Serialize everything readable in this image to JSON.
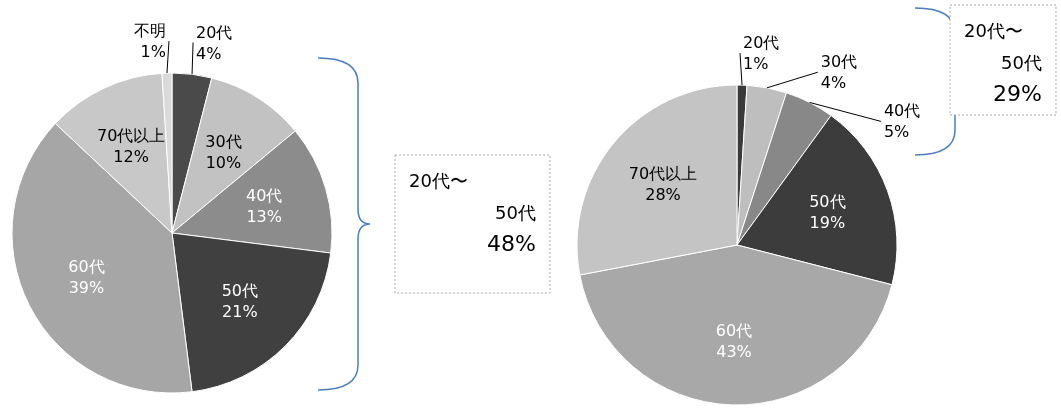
{
  "chart_data": [
    {
      "type": "pie",
      "categories": [
        "20代",
        "30代",
        "40代",
        "50代",
        "60代",
        "70代以上",
        "不明"
      ],
      "values": [
        4,
        10,
        13,
        21,
        39,
        12,
        1
      ],
      "colors": [
        "#4a4a4a",
        "#c2c2c2",
        "#8c8c8c",
        "#404040",
        "#a6a6a6",
        "#c8c8c8",
        "#dadada"
      ],
      "value_labels": [
        "4%",
        "10%",
        "13%",
        "21%",
        "39%",
        "12%",
        "1%"
      ],
      "annotations": [
        "20代〜\n50代\n48%"
      ]
    },
    {
      "type": "pie",
      "categories": [
        "20代",
        "30代",
        "40代",
        "50代",
        "60代",
        "70代以上"
      ],
      "values": [
        1,
        4,
        5,
        19,
        43,
        28
      ],
      "colors": [
        "#3a3a3a",
        "#bebebe",
        "#888888",
        "#3c3c3c",
        "#a8a8a8",
        "#c4c4c4"
      ],
      "value_labels": [
        "1%",
        "4%",
        "5%",
        "19%",
        "43%",
        "28%"
      ],
      "annotations": [
        "20代〜\n50代\n29%"
      ]
    }
  ]
}
